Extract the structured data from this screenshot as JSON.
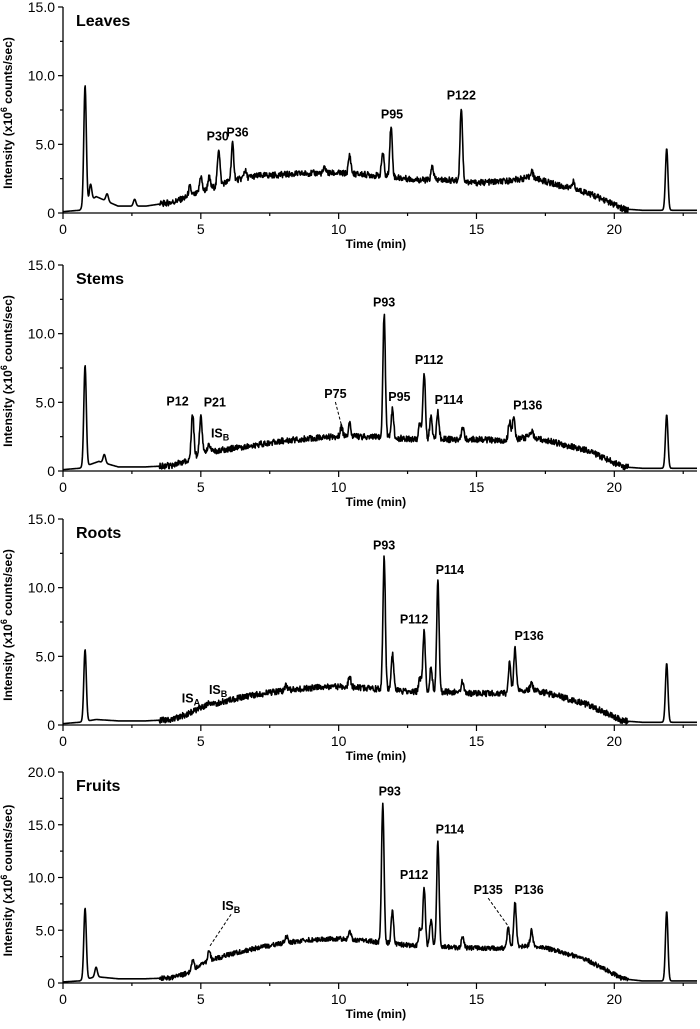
{
  "chart_data": [
    {
      "type": "line",
      "title": "Leaves",
      "xlabel": "Time (min)",
      "ylabel": "Intensity (x10^6 counts/sec)",
      "xlim": [
        0,
        23
      ],
      "ylim": [
        0,
        15
      ],
      "x_ticks": [
        "0",
        "5",
        "10",
        "15",
        "20"
      ],
      "y_ticks": [
        "0",
        "5.0",
        "10.0",
        "15.0"
      ],
      "baseline": [
        [
          0,
          0.1
        ],
        [
          0.6,
          0.2
        ],
        [
          1.2,
          1.2
        ],
        [
          2.0,
          0.5
        ],
        [
          3.0,
          0.5
        ],
        [
          4.0,
          0.8
        ],
        [
          5.0,
          1.5
        ],
        [
          6.0,
          2.3
        ],
        [
          7.0,
          2.7
        ],
        [
          8.0,
          2.8
        ],
        [
          9.0,
          2.9
        ],
        [
          10.0,
          2.9
        ],
        [
          11.0,
          2.8
        ],
        [
          12.0,
          2.6
        ],
        [
          13.0,
          2.4
        ],
        [
          14.0,
          2.4
        ],
        [
          15.0,
          2.2
        ],
        [
          16.0,
          2.3
        ],
        [
          17.0,
          2.6
        ],
        [
          18.0,
          2.0
        ],
        [
          19.0,
          1.5
        ],
        [
          19.8,
          0.8
        ],
        [
          20.3,
          0.3
        ],
        [
          21.0,
          0.2
        ],
        [
          21.7,
          0.2
        ],
        [
          23,
          0.2
        ]
      ],
      "peaks": [
        {
          "x": 0.8,
          "y": 9.3
        },
        {
          "x": 1.0,
          "y": 2.1
        },
        {
          "x": 1.6,
          "y": 1.4
        },
        {
          "x": 2.6,
          "y": 1.0
        },
        {
          "x": 4.6,
          "y": 1.9
        },
        {
          "x": 5.0,
          "y": 2.7
        },
        {
          "x": 5.3,
          "y": 2.6
        },
        {
          "x": 5.65,
          "y": 4.7,
          "label": "P30"
        },
        {
          "x": 6.15,
          "y": 5.0,
          "label": "P36"
        },
        {
          "x": 6.6,
          "y": 3.1
        },
        {
          "x": 9.5,
          "y": 3.3
        },
        {
          "x": 10.4,
          "y": 4.2
        },
        {
          "x": 11.6,
          "y": 4.4
        },
        {
          "x": 11.9,
          "y": 6.3,
          "label": "P95"
        },
        {
          "x": 13.4,
          "y": 3.4
        },
        {
          "x": 14.45,
          "y": 7.7,
          "label": "P122"
        },
        {
          "x": 17.0,
          "y": 3.1
        },
        {
          "x": 18.5,
          "y": 2.3
        },
        {
          "x": 21.9,
          "y": 4.7
        }
      ]
    },
    {
      "type": "line",
      "title": "Stems",
      "xlabel": "Time (min)",
      "ylabel": "Intensity (x10^6 counts/sec)",
      "xlim": [
        0,
        23
      ],
      "ylim": [
        0,
        15
      ],
      "x_ticks": [
        "0",
        "5",
        "10",
        "15",
        "20"
      ],
      "y_ticks": [
        "0",
        "5.0",
        "10.0",
        "15.0"
      ],
      "baseline": [
        [
          0,
          0.1
        ],
        [
          0.6,
          0.2
        ],
        [
          1.3,
          0.7
        ],
        [
          2.0,
          0.3
        ],
        [
          3.0,
          0.3
        ],
        [
          4.0,
          0.4
        ],
        [
          4.5,
          0.8
        ],
        [
          5.0,
          1.3
        ],
        [
          6.0,
          1.6
        ],
        [
          7.0,
          1.9
        ],
        [
          8.0,
          2.2
        ],
        [
          9.0,
          2.4
        ],
        [
          10.0,
          2.5
        ],
        [
          11.0,
          2.5
        ],
        [
          12.0,
          2.4
        ],
        [
          13.0,
          2.3
        ],
        [
          14.0,
          2.3
        ],
        [
          15.0,
          2.3
        ],
        [
          16.0,
          2.2
        ],
        [
          17.0,
          2.5
        ],
        [
          18.0,
          2.0
        ],
        [
          19.0,
          1.5
        ],
        [
          19.8,
          0.8
        ],
        [
          20.3,
          0.3
        ],
        [
          21.0,
          0.2
        ],
        [
          21.7,
          0.2
        ],
        [
          23,
          0.2
        ]
      ],
      "peaks": [
        {
          "x": 0.8,
          "y": 7.7
        },
        {
          "x": 1.5,
          "y": 1.2
        },
        {
          "x": 4.7,
          "y": 4.2,
          "label": "P12"
        },
        {
          "x": 5.0,
          "y": 4.1,
          "label": "P21"
        },
        {
          "x": 5.3,
          "y": 2.0,
          "label": "IS",
          "label_sub": "B"
        },
        {
          "x": 10.1,
          "y": 3.2,
          "label": "P75"
        },
        {
          "x": 10.4,
          "y": 3.4
        },
        {
          "x": 11.65,
          "y": 11.4,
          "label": "P93"
        },
        {
          "x": 11.95,
          "y": 4.5,
          "label": "P95"
        },
        {
          "x": 12.95,
          "y": 3.5
        },
        {
          "x": 13.1,
          "y": 7.2,
          "label": "P112"
        },
        {
          "x": 13.35,
          "y": 3.9
        },
        {
          "x": 13.6,
          "y": 4.3,
          "label": "P114"
        },
        {
          "x": 14.5,
          "y": 3.3
        },
        {
          "x": 16.2,
          "y": 3.6
        },
        {
          "x": 16.35,
          "y": 3.9,
          "label": "P136"
        },
        {
          "x": 17.0,
          "y": 2.9
        },
        {
          "x": 21.9,
          "y": 4.1
        }
      ]
    },
    {
      "type": "line",
      "title": "Roots",
      "xlabel": "Time (min)",
      "ylabel": "Intensity (x10^6 counts/sec)",
      "xlim": [
        0,
        23
      ],
      "ylim": [
        0,
        15
      ],
      "x_ticks": [
        "0",
        "5",
        "10",
        "15",
        "20"
      ],
      "y_ticks": [
        "0",
        "5.0",
        "10.0",
        "15.0"
      ],
      "baseline": [
        [
          0,
          0.1
        ],
        [
          0.6,
          0.2
        ],
        [
          1.2,
          0.4
        ],
        [
          2.0,
          0.3
        ],
        [
          3.0,
          0.3
        ],
        [
          4.0,
          0.4
        ],
        [
          4.5,
          0.8
        ],
        [
          5.0,
          1.3
        ],
        [
          6.0,
          1.8
        ],
        [
          7.0,
          2.2
        ],
        [
          8.0,
          2.5
        ],
        [
          9.0,
          2.7
        ],
        [
          10.0,
          2.8
        ],
        [
          11.0,
          2.7
        ],
        [
          12.0,
          2.5
        ],
        [
          13.0,
          2.4
        ],
        [
          14.0,
          2.4
        ],
        [
          15.0,
          2.3
        ],
        [
          16.0,
          2.3
        ],
        [
          17.0,
          2.6
        ],
        [
          18.0,
          2.1
        ],
        [
          19.0,
          1.5
        ],
        [
          19.8,
          0.8
        ],
        [
          20.3,
          0.3
        ],
        [
          21.0,
          0.2
        ],
        [
          21.7,
          0.2
        ],
        [
          23,
          0.2
        ]
      ],
      "peaks": [
        {
          "x": 0.8,
          "y": 5.5
        },
        {
          "x": 4.75,
          "y": 1.0,
          "label": "IS",
          "label_sub": "A"
        },
        {
          "x": 5.3,
          "y": 1.6,
          "label": "IS",
          "label_sub": "B"
        },
        {
          "x": 8.1,
          "y": 2.9
        },
        {
          "x": 10.4,
          "y": 3.5
        },
        {
          "x": 11.65,
          "y": 12.2,
          "label": "P93"
        },
        {
          "x": 11.95,
          "y": 5.2
        },
        {
          "x": 12.95,
          "y": 3.4
        },
        {
          "x": 13.1,
          "y": 6.8,
          "label": "P112"
        },
        {
          "x": 13.35,
          "y": 4.2
        },
        {
          "x": 13.6,
          "y": 10.4,
          "label": "P114"
        },
        {
          "x": 14.5,
          "y": 3.2
        },
        {
          "x": 16.2,
          "y": 4.5
        },
        {
          "x": 16.4,
          "y": 5.6,
          "label": "P136"
        },
        {
          "x": 17.0,
          "y": 3.0
        },
        {
          "x": 21.9,
          "y": 4.5
        }
      ]
    },
    {
      "type": "line",
      "title": "Fruits",
      "xlabel": "Time (min)",
      "ylabel": "Intensity (x10^6 counts/sec)",
      "xlim": [
        0,
        23
      ],
      "ylim": [
        0,
        20
      ],
      "x_ticks": [
        "0",
        "5",
        "10",
        "15",
        "20"
      ],
      "y_ticks": [
        "0",
        "5.0",
        "10.0",
        "15.0",
        "20.0"
      ],
      "baseline": [
        [
          0,
          0.1
        ],
        [
          0.6,
          0.2
        ],
        [
          1.2,
          0.6
        ],
        [
          2.0,
          0.4
        ],
        [
          3.0,
          0.4
        ],
        [
          4.0,
          0.5
        ],
        [
          4.6,
          1.0
        ],
        [
          5.0,
          1.8
        ],
        [
          6.0,
          2.7
        ],
        [
          7.0,
          3.3
        ],
        [
          8.0,
          3.8
        ],
        [
          9.0,
          4.1
        ],
        [
          10.0,
          4.2
        ],
        [
          11.0,
          4.0
        ],
        [
          12.0,
          3.7
        ],
        [
          13.0,
          3.5
        ],
        [
          14.0,
          3.4
        ],
        [
          15.0,
          3.3
        ],
        [
          16.0,
          3.3
        ],
        [
          17.0,
          3.6
        ],
        [
          18.0,
          3.0
        ],
        [
          19.0,
          2.2
        ],
        [
          19.8,
          1.1
        ],
        [
          20.3,
          0.4
        ],
        [
          21.0,
          0.2
        ],
        [
          21.7,
          0.2
        ],
        [
          23,
          0.2
        ]
      ],
      "peaks": [
        {
          "x": 0.8,
          "y": 7.1
        },
        {
          "x": 1.2,
          "y": 1.5
        },
        {
          "x": 4.7,
          "y": 2.2
        },
        {
          "x": 5.3,
          "y": 3.2,
          "label": "IS",
          "label_sub": "B"
        },
        {
          "x": 8.1,
          "y": 4.5
        },
        {
          "x": 10.4,
          "y": 5.0
        },
        {
          "x": 11.6,
          "y": 17.0,
          "label": "P93"
        },
        {
          "x": 11.95,
          "y": 6.8
        },
        {
          "x": 12.95,
          "y": 5.2
        },
        {
          "x": 13.1,
          "y": 9.1,
          "label": "P112"
        },
        {
          "x": 13.35,
          "y": 6.0
        },
        {
          "x": 13.6,
          "y": 13.4,
          "label": "P114"
        },
        {
          "x": 14.5,
          "y": 4.5
        },
        {
          "x": 16.15,
          "y": 5.2,
          "label": "P135"
        },
        {
          "x": 16.4,
          "y": 7.7,
          "label": "P136"
        },
        {
          "x": 17.0,
          "y": 5.0
        },
        {
          "x": 21.9,
          "y": 6.8
        }
      ]
    }
  ]
}
